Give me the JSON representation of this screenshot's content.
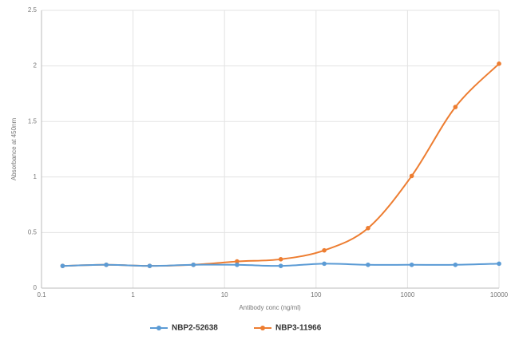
{
  "chart_data": {
    "type": "line",
    "x_label": "Antibody conc (ng/ml)",
    "y_label": "Absorbance at 450nm",
    "x": [
      0.17,
      0.51,
      1.52,
      4.57,
      13.7,
      41.2,
      123,
      370,
      1111,
      3333,
      10000
    ],
    "x_log": true,
    "xlim": [
      0.1,
      10000
    ],
    "xticks": [
      0.1,
      1,
      10,
      100,
      1000,
      10000
    ],
    "ylim": [
      0,
      2.5
    ],
    "yticks": [
      0,
      0.5,
      1,
      1.5,
      2,
      2.5
    ],
    "grid": true,
    "legend": "bottom",
    "series": [
      {
        "name": "NBP2-52638",
        "color": "#5b9bd5",
        "values": [
          0.2,
          0.21,
          0.2,
          0.21,
          0.21,
          0.2,
          0.22,
          0.21,
          0.21,
          0.21,
          0.22
        ]
      },
      {
        "name": "NBP3-11966",
        "color": "#ed7d31",
        "values": [
          0.2,
          0.21,
          0.2,
          0.21,
          0.24,
          0.26,
          0.34,
          0.54,
          1.01,
          1.63,
          2.02
        ]
      }
    ]
  }
}
